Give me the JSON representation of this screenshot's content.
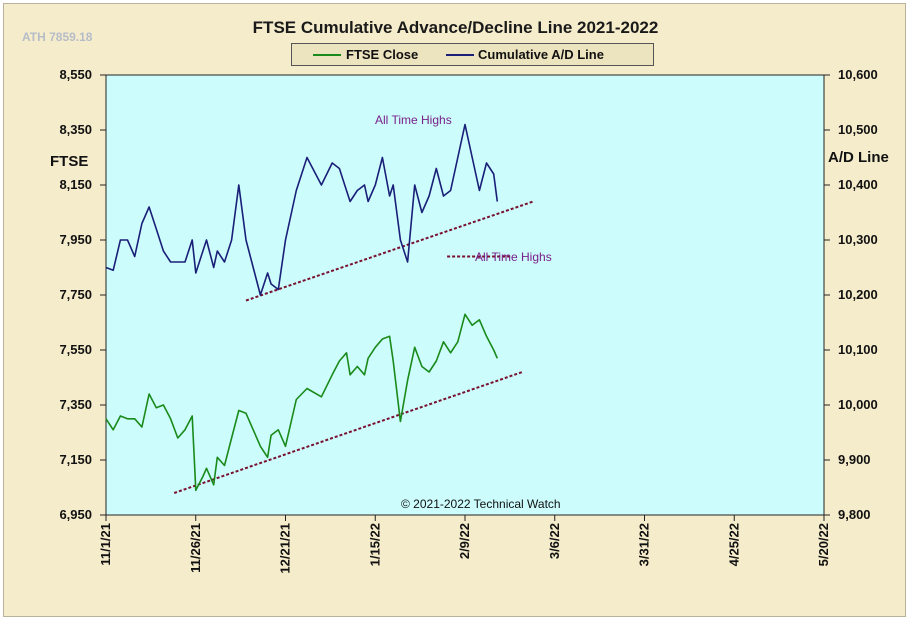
{
  "header": {
    "ath_label": "ATH 7859.18",
    "title": "FTSE Cumulative  Advance/Decline  Line 2021-2022"
  },
  "legend": [
    {
      "name": "FTSE Close",
      "color": "#1a8a1a"
    },
    {
      "name": "Cumulative A/D Line",
      "color": "#1a1f78"
    }
  ],
  "footer": {
    "copyright": "© 2021-2022  Technical Watch"
  },
  "annotations": [
    {
      "text": "All Time Highs",
      "series": "Cumulative A/D Line"
    },
    {
      "text": "All Time Highs",
      "series": "Cumulative A/D Line"
    }
  ],
  "colors": {
    "plot_background": "#ccfcfc",
    "frame_background": "#f5eccb",
    "trendline": "#7a1030",
    "annotation_text": "#7a1f8a"
  },
  "chart_data": {
    "type": "line",
    "x_axis": {
      "tick_labels": [
        "11/1/21",
        "11/26/21",
        "12/21/21",
        "1/15/22",
        "2/9/22",
        "3/6/22",
        "3/31/22",
        "4/25/22",
        "5/20/22"
      ],
      "range": [
        "2021-11-01",
        "2022-05-20"
      ]
    },
    "y_axis_left": {
      "label": "FTSE",
      "range": [
        6950,
        8550
      ],
      "tick_labels": [
        "8,550",
        "8,350",
        "8,150",
        "7,950",
        "7,750",
        "7,550",
        "7,350",
        "7,150",
        "6,950"
      ]
    },
    "y_axis_right": {
      "label": "A/D Line",
      "range": [
        9800,
        10600
      ],
      "tick_labels": [
        "10,600",
        "10,500",
        "10,400",
        "10,300",
        "10,200",
        "10,100",
        "10,000",
        "9,900",
        "9,800"
      ]
    },
    "grid": false,
    "legend_placement": "top-center",
    "series": [
      {
        "name": "FTSE Close",
        "axis": "left",
        "x": [
          "2021-11-01",
          "2021-11-03",
          "2021-11-05",
          "2021-11-07",
          "2021-11-09",
          "2021-11-11",
          "2021-11-13",
          "2021-11-15",
          "2021-11-17",
          "2021-11-19",
          "2021-11-21",
          "2021-11-23",
          "2021-11-25",
          "2021-11-26",
          "2021-11-28",
          "2021-11-29",
          "2021-12-01",
          "2021-12-02",
          "2021-12-04",
          "2021-12-06",
          "2021-12-08",
          "2021-12-10",
          "2021-12-12",
          "2021-12-14",
          "2021-12-16",
          "2021-12-17",
          "2021-12-19",
          "2021-12-21",
          "2021-12-24",
          "2021-12-27",
          "2021-12-31",
          "2022-01-03",
          "2022-01-05",
          "2022-01-07",
          "2022-01-08",
          "2022-01-10",
          "2022-01-12",
          "2022-01-13",
          "2022-01-15",
          "2022-01-17",
          "2022-01-19",
          "2022-01-20",
          "2022-01-22",
          "2022-01-24",
          "2022-01-26",
          "2022-01-28",
          "2022-01-30",
          "2022-02-01",
          "2022-02-03",
          "2022-02-05",
          "2022-02-07",
          "2022-02-09",
          "2022-02-11",
          "2022-02-13",
          "2022-02-15",
          "2022-02-17",
          "2022-02-18"
        ],
        "y": [
          7300,
          7260,
          7310,
          7300,
          7300,
          7270,
          7390,
          7340,
          7350,
          7300,
          7230,
          7260,
          7310,
          7040,
          7090,
          7120,
          7060,
          7160,
          7130,
          7230,
          7330,
          7320,
          7260,
          7200,
          7160,
          7240,
          7260,
          7200,
          7370,
          7410,
          7380,
          7460,
          7510,
          7540,
          7460,
          7490,
          7460,
          7520,
          7560,
          7590,
          7600,
          7510,
          7290,
          7440,
          7560,
          7490,
          7470,
          7510,
          7580,
          7540,
          7580,
          7680,
          7640,
          7660,
          7600,
          7550,
          7520
        ]
      },
      {
        "name": "Cumulative A/D Line",
        "axis": "right",
        "x": [
          "2021-11-01",
          "2021-11-03",
          "2021-11-05",
          "2021-11-07",
          "2021-11-09",
          "2021-11-11",
          "2021-11-13",
          "2021-11-15",
          "2021-11-17",
          "2021-11-19",
          "2021-11-21",
          "2021-11-23",
          "2021-11-25",
          "2021-11-26",
          "2021-11-28",
          "2021-11-29",
          "2021-12-01",
          "2021-12-02",
          "2021-12-04",
          "2021-12-06",
          "2021-12-08",
          "2021-12-10",
          "2021-12-12",
          "2021-12-14",
          "2021-12-16",
          "2021-12-17",
          "2021-12-19",
          "2021-12-21",
          "2021-12-24",
          "2021-12-27",
          "2021-12-31",
          "2022-01-03",
          "2022-01-05",
          "2022-01-07",
          "2022-01-08",
          "2022-01-10",
          "2022-01-12",
          "2022-01-13",
          "2022-01-15",
          "2022-01-17",
          "2022-01-19",
          "2022-01-20",
          "2022-01-22",
          "2022-01-24",
          "2022-01-26",
          "2022-01-28",
          "2022-01-30",
          "2022-02-01",
          "2022-02-03",
          "2022-02-05",
          "2022-02-07",
          "2022-02-09",
          "2022-02-11",
          "2022-02-13",
          "2022-02-15",
          "2022-02-17",
          "2022-02-18"
        ],
        "y": [
          10250,
          10245,
          10300,
          10300,
          10270,
          10330,
          10360,
          10320,
          10280,
          10260,
          10260,
          10260,
          10300,
          10240,
          10280,
          10300,
          10250,
          10280,
          10260,
          10300,
          10400,
          10300,
          10250,
          10200,
          10240,
          10220,
          10210,
          10300,
          10390,
          10450,
          10400,
          10440,
          10430,
          10390,
          10370,
          10390,
          10400,
          10370,
          10400,
          10450,
          10380,
          10400,
          10300,
          10260,
          10400,
          10350,
          10380,
          10430,
          10380,
          10390,
          10450,
          10510,
          10450,
          10390,
          10440,
          10420,
          10370
        ]
      }
    ],
    "trendlines": [
      {
        "series": "Cumulative A/D Line",
        "from": [
          "2021-12-10",
          10190
        ],
        "to": [
          "2022-02-28",
          10370
        ]
      },
      {
        "series": "FTSE Close",
        "from": [
          "2021-11-20",
          7030
        ],
        "to": [
          "2022-02-25",
          7470
        ]
      },
      {
        "series": "Cumulative A/D Line",
        "from": [
          "2022-02-04",
          10270
        ],
        "to": [
          "2022-02-22",
          10270
        ],
        "note": "All Time Highs"
      }
    ]
  }
}
